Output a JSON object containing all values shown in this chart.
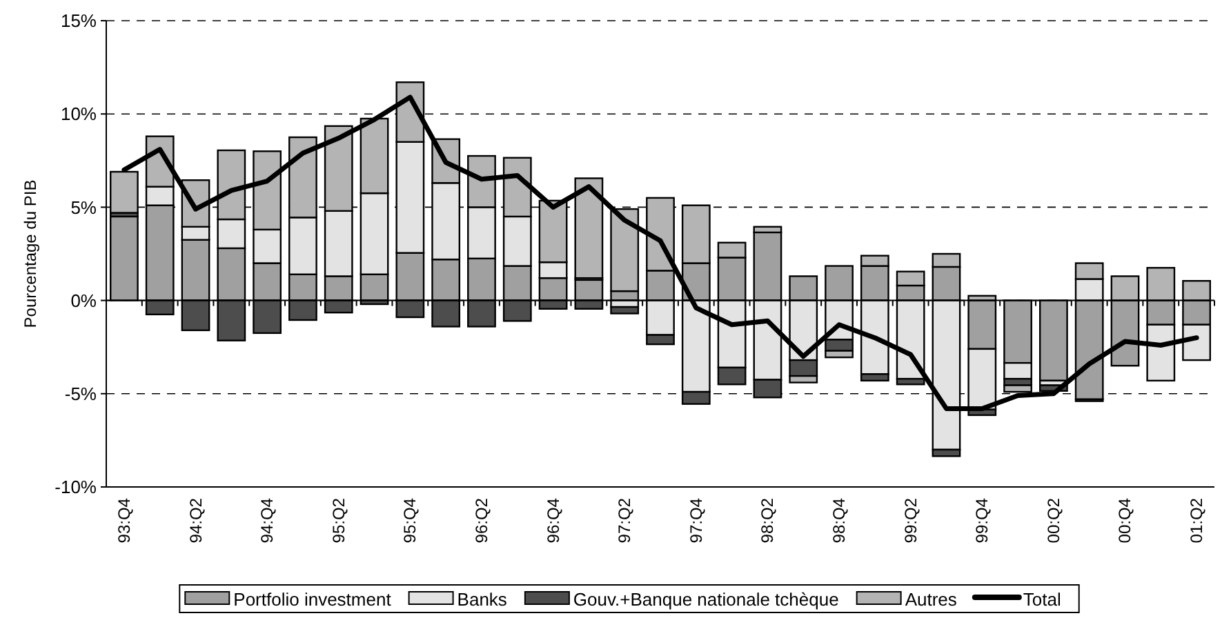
{
  "chart_data": {
    "type": "bar",
    "stacked": true,
    "ylabel": "Pourcentage du PIB",
    "categories": [
      "93:Q4",
      null,
      "94:Q2",
      null,
      "94:Q4",
      null,
      "95:Q2",
      null,
      "95:Q4",
      null,
      "96:Q2",
      null,
      "96:Q4",
      null,
      "97:Q2",
      null,
      "97:Q4",
      null,
      "98:Q2",
      null,
      "98:Q4",
      null,
      "99:Q2",
      null,
      "99:Q4",
      null,
      "00:Q2",
      null,
      "00:Q4",
      null,
      "01:Q2"
    ],
    "series": [
      {
        "name": "Portfolio investment",
        "color": "#a0a0a0",
        "values": [
          4.5,
          5.1,
          3.25,
          2.8,
          2.0,
          1.4,
          1.3,
          1.4,
          2.55,
          2.2,
          2.25,
          1.85,
          1.2,
          1.1,
          0.5,
          1.6,
          2.0,
          2.3,
          3.65,
          1.3,
          1.85,
          1.85,
          0.8,
          1.8,
          -2.6,
          -3.35,
          -4.3,
          -5.3,
          -3.5,
          -1.3,
          -1.3
        ]
      },
      {
        "name": "Banks",
        "color": "#e3e3e3",
        "values": [
          null,
          1.0,
          0.7,
          1.55,
          1.8,
          3.05,
          3.5,
          4.35,
          5.95,
          4.1,
          2.75,
          2.65,
          0.85,
          0.1,
          -0.35,
          -1.85,
          -4.9,
          -3.6,
          -4.25,
          -3.2,
          -2.1,
          -3.95,
          -4.2,
          -8.0,
          -3.25,
          -0.85,
          -0.25,
          1.15,
          null,
          -3.0,
          -1.9
        ]
      },
      {
        "name": "Gouv.+Banque nationale tchèque",
        "color": "#4d4d4d",
        "values": [
          0.2,
          -0.75,
          -1.6,
          -2.15,
          -1.75,
          -1.05,
          -0.65,
          -0.2,
          -0.9,
          -1.4,
          -1.4,
          -1.1,
          -0.45,
          -0.45,
          -0.35,
          -0.5,
          -0.65,
          -0.9,
          -0.95,
          -0.85,
          -0.6,
          -0.35,
          -0.3,
          -0.35,
          -0.3,
          -0.35,
          -0.3,
          -0.1,
          null,
          null,
          null
        ]
      },
      {
        "name": "Autres",
        "color": "#b4b4b4",
        "values": [
          2.2,
          2.7,
          2.5,
          3.7,
          4.2,
          4.3,
          4.55,
          4.0,
          3.2,
          2.35,
          2.75,
          3.15,
          3.3,
          5.35,
          4.4,
          3.9,
          3.1,
          0.8,
          0.3,
          -0.35,
          -0.35,
          0.55,
          0.75,
          0.7,
          0.25,
          -0.35,
          null,
          0.85,
          1.3,
          1.75,
          1.05
        ]
      },
      {
        "name": "Total",
        "type": "line",
        "color": "#000000",
        "values": [
          7.0,
          8.1,
          4.9,
          5.9,
          6.4,
          7.9,
          8.7,
          9.7,
          10.9,
          7.4,
          6.5,
          6.7,
          5.0,
          6.1,
          4.3,
          3.2,
          -0.4,
          -1.3,
          -1.1,
          -3.0,
          -1.3,
          -2.0,
          -2.9,
          -5.8,
          -5.8,
          -5.1,
          -5.0,
          -3.4,
          -2.2,
          -2.4,
          -2.0
        ]
      }
    ],
    "ylim": [
      -10,
      15
    ],
    "yticks": [
      {
        "value": -10,
        "label": "-10%"
      },
      {
        "value": -5,
        "label": "-5%"
      },
      {
        "value": 0,
        "label": "0%"
      },
      {
        "value": 5,
        "label": "5%"
      },
      {
        "value": 10,
        "label": "10%"
      },
      {
        "value": 15,
        "label": "15%"
      }
    ],
    "grid": "y",
    "legend": "bottom",
    "marker": "none",
    "line_style": "solid"
  }
}
